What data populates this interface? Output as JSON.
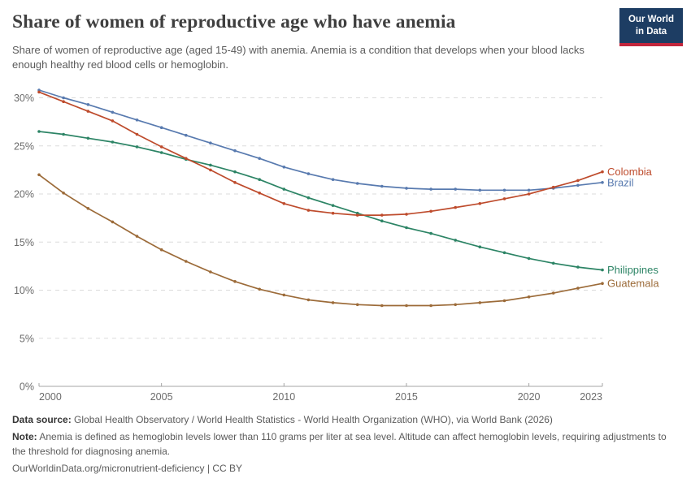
{
  "header": {
    "title": "Share of women of reproductive age who have anemia",
    "subtitle": "Share of women of reproductive age (aged 15-49) with anemia. Anemia is a condition that develops when your blood lacks enough healthy red blood cells or hemoglobin.",
    "logo": {
      "line1": "Our World",
      "line2": "in Data",
      "navy": "#1d3d63",
      "red": "#c2263c"
    }
  },
  "chart_data": {
    "type": "line",
    "x": [
      2000,
      2001,
      2002,
      2003,
      2004,
      2005,
      2006,
      2007,
      2008,
      2009,
      2010,
      2011,
      2012,
      2013,
      2014,
      2015,
      2016,
      2017,
      2018,
      2019,
      2020,
      2021,
      2022,
      2023
    ],
    "series": [
      {
        "name": "Colombia",
        "color": "#be4b2c",
        "values": [
          30.6,
          29.6,
          28.6,
          27.6,
          26.2,
          24.9,
          23.7,
          22.5,
          21.2,
          20.1,
          19.0,
          18.3,
          18.0,
          17.8,
          17.8,
          17.9,
          18.2,
          18.6,
          19.0,
          19.5,
          20.0,
          20.7,
          21.4,
          22.3
        ]
      },
      {
        "name": "Brazil",
        "color": "#587aaf",
        "values": [
          30.8,
          30.0,
          29.3,
          28.5,
          27.7,
          26.9,
          26.1,
          25.3,
          24.5,
          23.7,
          22.8,
          22.1,
          21.5,
          21.1,
          20.8,
          20.6,
          20.5,
          20.5,
          20.4,
          20.4,
          20.4,
          20.6,
          20.9,
          21.2
        ]
      },
      {
        "name": "Philippines",
        "color": "#2c8465",
        "values": [
          26.5,
          26.2,
          25.8,
          25.4,
          24.9,
          24.3,
          23.6,
          23.0,
          22.3,
          21.5,
          20.5,
          19.6,
          18.8,
          18.0,
          17.2,
          16.5,
          15.9,
          15.2,
          14.5,
          13.9,
          13.3,
          12.8,
          12.4,
          12.1
        ]
      },
      {
        "name": "Guatemala",
        "color": "#9c6b39",
        "values": [
          22.0,
          20.1,
          18.5,
          17.1,
          15.6,
          14.2,
          13.0,
          11.9,
          10.9,
          10.1,
          9.5,
          9.0,
          8.7,
          8.5,
          8.4,
          8.4,
          8.4,
          8.5,
          8.7,
          8.9,
          9.3,
          9.7,
          10.2,
          10.7
        ]
      }
    ],
    "ylim": [
      0,
      31
    ],
    "yticks": [
      0,
      5,
      10,
      15,
      20,
      25,
      30
    ],
    "ytick_labels": [
      "0%",
      "5%",
      "10%",
      "15%",
      "20%",
      "25%",
      "30%"
    ],
    "xticks": [
      2000,
      2005,
      2010,
      2015,
      2020,
      2023
    ],
    "xtick_labels": [
      "2000",
      "2005",
      "2010",
      "2015",
      "2020",
      "2023"
    ],
    "grid": "horizontal-dashed",
    "legend_position": "right-of-line-ends",
    "colors": {
      "gridline": "#dbdbdb",
      "axis": "#a5a5a5",
      "tick_label": "#6b6b6b"
    }
  },
  "footer": {
    "datasource_label": "Data source:",
    "datasource_text": " Global Health Observatory / World Health Statistics - World Health Organization (WHO), via World Bank (2026)",
    "note_label": "Note:",
    "note_text": " Anemia is defined as hemoglobin levels lower than 110 grams per liter at sea level. Altitude can affect hemoglobin levels, requiring adjustments to the threshold for diagnosing anemia.",
    "license": "OurWorldinData.org/micronutrient-deficiency | CC BY"
  }
}
